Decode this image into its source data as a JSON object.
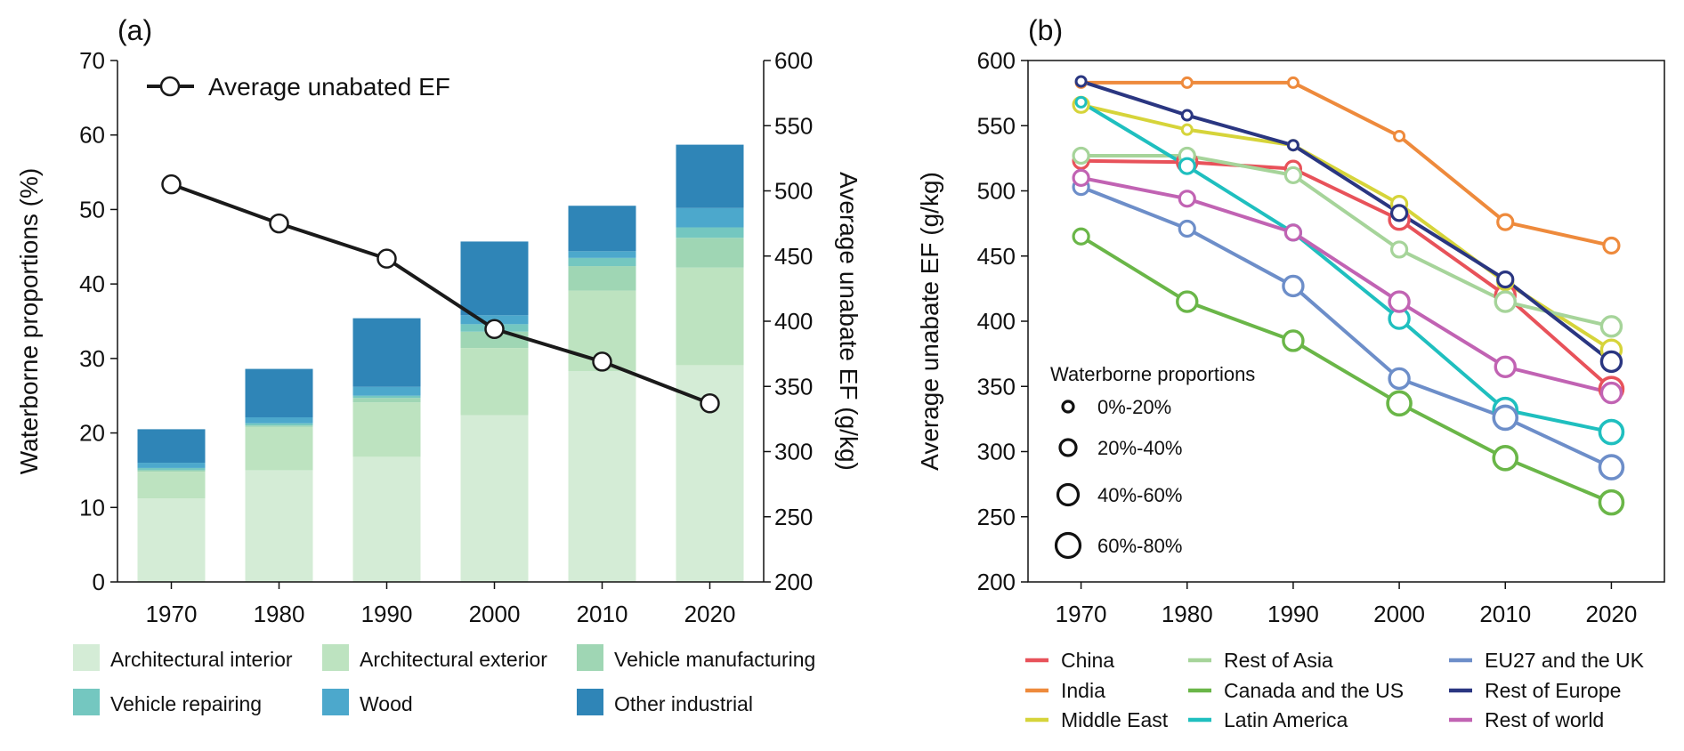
{
  "chart_data": [
    {
      "panel": "(a)",
      "type": "bar",
      "stacked": true,
      "categories": [
        "1970",
        "1980",
        "1990",
        "2000",
        "2010",
        "2020"
      ],
      "ylabel": "Waterborne proportions (%)",
      "ylim": [
        0,
        70
      ],
      "yticks": [
        0,
        10,
        20,
        30,
        40,
        50,
        60,
        70
      ],
      "y2label": "Average unabate EF (g/kg)",
      "y2lim": [
        200,
        600
      ],
      "y2ticks": [
        200,
        250,
        300,
        350,
        400,
        450,
        500,
        550,
        600
      ],
      "series": [
        {
          "name": "Architectural interior",
          "color": "#d4ecd6",
          "values": [
            11.2,
            15.0,
            16.8,
            22.4,
            28.3,
            29.1
          ]
        },
        {
          "name": "Architectural exterior",
          "color": "#bde3c0",
          "values": [
            3.6,
            5.8,
            7.3,
            9.0,
            10.8,
            13.1
          ]
        },
        {
          "name": "Vehicle manufacturing",
          "color": "#9fd6b4",
          "values": [
            0.2,
            0.2,
            0.6,
            2.2,
            3.3,
            4.0
          ]
        },
        {
          "name": "Vehicle repairing",
          "color": "#74c7c0",
          "values": [
            0.3,
            0.3,
            0.3,
            1.0,
            1.1,
            1.4
          ]
        },
        {
          "name": "Wood",
          "color": "#4ca8cc",
          "values": [
            0.7,
            0.8,
            1.2,
            1.2,
            0.9,
            2.6
          ]
        },
        {
          "name": "Other industrial",
          "color": "#2f85b7",
          "values": [
            4.5,
            6.5,
            9.2,
            9.9,
            6.1,
            8.5
          ]
        }
      ],
      "line_series": {
        "name": "Average unabated EF",
        "axis": "right",
        "values": [
          505,
          475,
          448,
          394,
          369,
          337
        ]
      }
    },
    {
      "panel": "(b)",
      "type": "line",
      "x": [
        "1970",
        "1980",
        "1990",
        "2000",
        "2010",
        "2020"
      ],
      "ylabel": "Average unabate EF (g/kg)",
      "ylim": [
        200,
        600
      ],
      "yticks": [
        200,
        250,
        300,
        350,
        400,
        450,
        500,
        550,
        600
      ],
      "size_legend": {
        "title": "Waterborne proportions",
        "items": [
          "0%-20%",
          "20%-40%",
          "40%-60%",
          "60%-80%"
        ]
      },
      "series": [
        {
          "name": "China",
          "color": "#e8525a",
          "values": [
            523,
            522,
            517,
            478,
            420,
            348
          ],
          "size_class": [
            1,
            2,
            1,
            2,
            2,
            3
          ]
        },
        {
          "name": "India",
          "color": "#ee8a3c",
          "values": [
            583,
            583,
            583,
            542,
            476,
            458
          ],
          "size_class": [
            0,
            0,
            0,
            0,
            1,
            1
          ]
        },
        {
          "name": "Middle East",
          "color": "#d6d43a",
          "values": [
            566,
            547,
            535,
            490,
            430,
            378
          ],
          "size_class": [
            1,
            0,
            0,
            1,
            1,
            2
          ]
        },
        {
          "name": "Rest of Asia",
          "color": "#a6d49a",
          "values": [
            527,
            527,
            512,
            455,
            415,
            396
          ],
          "size_class": [
            1,
            1,
            1,
            1,
            2,
            2
          ]
        },
        {
          "name": "Canada and the US",
          "color": "#6ab648",
          "values": [
            465,
            415,
            385,
            337,
            295,
            261
          ],
          "size_class": [
            1,
            2,
            2,
            3,
            3,
            3
          ]
        },
        {
          "name": "Latin America",
          "color": "#1fbfbf",
          "values": [
            568,
            519,
            468,
            402,
            332,
            315
          ],
          "size_class": [
            0,
            1,
            1,
            2,
            3,
            3
          ]
        },
        {
          "name": "EU27 and the UK",
          "color": "#6d8ec9",
          "values": [
            503,
            471,
            427,
            356,
            326,
            288
          ],
          "size_class": [
            1,
            1,
            2,
            2,
            3,
            3
          ]
        },
        {
          "name": "Rest of Europe",
          "color": "#2a3681",
          "values": [
            584,
            558,
            535,
            483,
            432,
            369
          ],
          "size_class": [
            0,
            0,
            0,
            1,
            1,
            2
          ]
        },
        {
          "name": "Rest of world",
          "color": "#c163b3",
          "values": [
            510,
            494,
            468,
            415,
            365,
            345
          ],
          "size_class": [
            1,
            1,
            1,
            2,
            2,
            2
          ]
        }
      ]
    }
  ]
}
